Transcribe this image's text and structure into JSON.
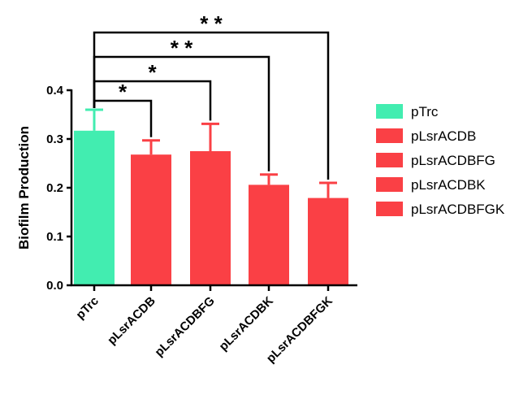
{
  "chart_data": {
    "type": "bar",
    "categories": [
      "pTrc",
      "pLsrACDB",
      "pLsrACDBFG",
      "pLsrACDBK",
      "pLsrACDBFGK"
    ],
    "values": [
      0.317,
      0.268,
      0.275,
      0.206,
      0.179
    ],
    "errors": [
      0.043,
      0.029,
      0.056,
      0.021,
      0.031
    ],
    "colors": [
      "#42EDB0",
      "#FA4045",
      "#FA4045",
      "#FA4045",
      "#FA4045"
    ],
    "ylabel": "Biofilm Production",
    "ylim": [
      0,
      0.4
    ],
    "yticks": [
      "0.0",
      "0.1",
      "0.2",
      "0.3",
      "0.4"
    ],
    "legend": [
      {
        "label": "pTrc",
        "color": "#42EDB0"
      },
      {
        "label": "pLsrACDB",
        "color": "#FA4045"
      },
      {
        "label": "pLsrACDBFG",
        "color": "#FA4045"
      },
      {
        "label": "pLsrACDBK",
        "color": "#FA4045"
      },
      {
        "label": "pLsrACDBFGK",
        "color": "#FA4045"
      }
    ],
    "legend_position": "right",
    "grid": false,
    "significance": [
      {
        "from": "pTrc",
        "to": "pLsrACDB",
        "label": "*"
      },
      {
        "from": "pTrc",
        "to": "pLsrACDBFG",
        "label": "*"
      },
      {
        "from": "pTrc",
        "to": "pLsrACDBK",
        "label": "* *"
      },
      {
        "from": "pTrc",
        "to": "pLsrACDBFGK",
        "label": "* *"
      }
    ]
  }
}
